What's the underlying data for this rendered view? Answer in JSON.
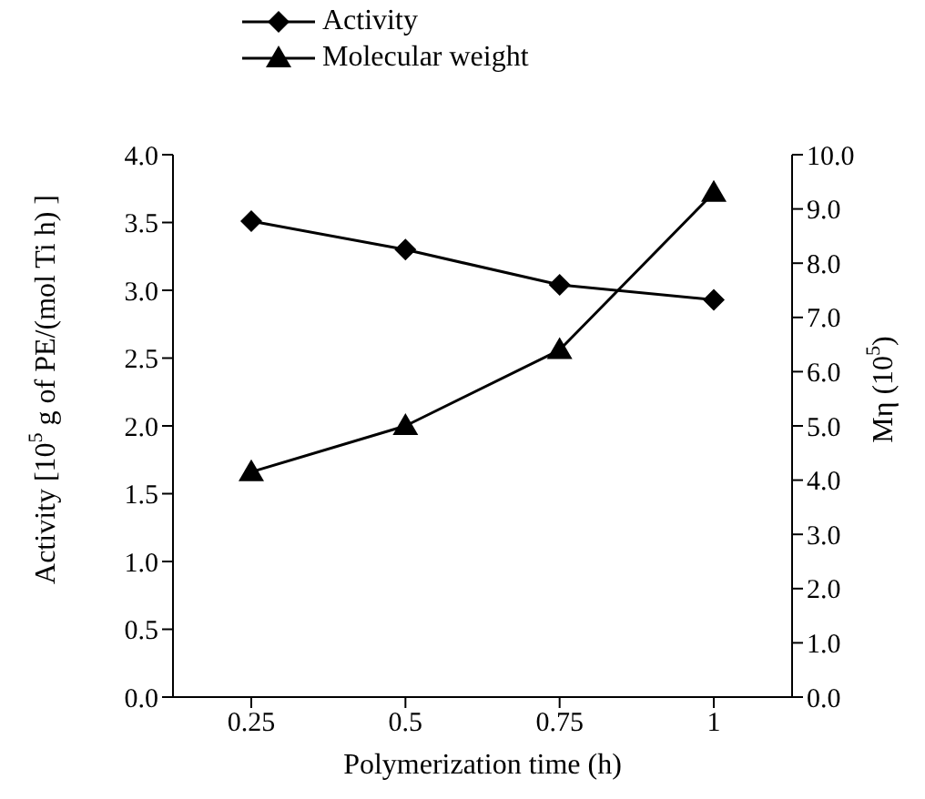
{
  "chart_data": {
    "type": "line",
    "xlabel": "Polymerization time (h)",
    "ylabel": "Activity [10$^{5}$ g of PE/(mol Ti h) ]",
    "y2label": "Mη (10$^{5}$)",
    "categories": [
      "0.25",
      "0.5",
      "0.75",
      "1"
    ],
    "series": [
      {
        "name": "Activity",
        "color": "#000000",
        "marker": "diamond",
        "values": [
          3.51,
          3.3,
          3.04,
          2.93
        ]
      },
      {
        "name": "Molecular weight",
        "color": "#000000",
        "marker": "triangle",
        "axis": "y2",
        "values": [
          4.15,
          5.0,
          6.4,
          9.3
        ]
      }
    ],
    "ylim": [
      0,
      4
    ],
    "yticks": [
      {
        "value": 0,
        "label": "0.0"
      },
      0.5,
      {
        "value": 1,
        "label": "1.0"
      },
      1.5,
      {
        "value": 2,
        "label": "2.0"
      },
      2.5,
      {
        "value": 3,
        "label": "3.0"
      },
      3.5,
      {
        "value": 4,
        "label": "4.0"
      }
    ],
    "y2lim": [
      0,
      10
    ],
    "y2ticks": [
      {
        "value": 0,
        "label": "0.0"
      },
      {
        "value": 1,
        "label": "1.0"
      },
      {
        "value": 2,
        "label": "2.0"
      },
      {
        "value": 3,
        "label": "3.0"
      },
      {
        "value": 4,
        "label": "4.0"
      },
      {
        "value": 5,
        "label": "5.0"
      },
      {
        "value": 6,
        "label": "6.0"
      },
      {
        "value": 7,
        "label": "7.0"
      },
      {
        "value": 8,
        "label": "8.0"
      },
      {
        "value": 9,
        "label": "9.0"
      },
      {
        "value": 10,
        "label": "10.0"
      }
    ],
    "grid": false,
    "legend": "top",
    "line_style": "solid"
  }
}
